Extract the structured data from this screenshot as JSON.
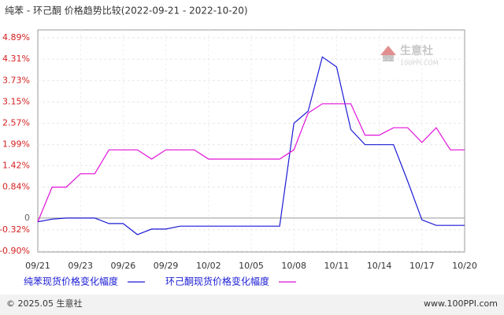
{
  "chart_data": {
    "type": "line",
    "title": "纯苯 - 环己酮 价格趋势比较(2022-09-21 - 2022-10-20)",
    "categories": [
      "09/21",
      null,
      null,
      "09/23",
      null,
      null,
      "09/26",
      null,
      null,
      "09/29",
      null,
      null,
      "10/02",
      null,
      null,
      "10/05",
      null,
      null,
      "10/08",
      null,
      null,
      "10/11",
      null,
      null,
      "10/14",
      null,
      null,
      "10/17",
      null,
      null,
      "10/20"
    ],
    "series": [
      {
        "name": "纯苯现货价格变化幅度",
        "color": "#1a1ad6",
        "values": [
          -0.1,
          -0.03,
          0,
          0,
          0,
          -0.15,
          -0.15,
          -0.45,
          -0.3,
          -0.3,
          -0.22,
          -0.22,
          -0.22,
          -0.22,
          -0.22,
          -0.22,
          -0.22,
          -0.22,
          2.57,
          2.9,
          4.37,
          4.1,
          2.4,
          1.99,
          1.99,
          1.99,
          1.0,
          -0.05,
          -0.2,
          -0.2,
          -0.2
        ]
      },
      {
        "name": "环己酮现货价格变化幅度",
        "color": "#e010d8",
        "values": [
          -0.1,
          0.84,
          0.84,
          1.2,
          1.2,
          1.85,
          1.85,
          1.85,
          1.6,
          1.85,
          1.85,
          1.85,
          1.6,
          1.6,
          1.6,
          1.6,
          1.6,
          1.6,
          1.85,
          2.85,
          3.1,
          3.1,
          3.1,
          2.25,
          2.25,
          2.45,
          2.45,
          2.05,
          2.45,
          1.85,
          1.85
        ]
      }
    ],
    "ylim": [
      -0.9,
      4.89
    ],
    "yticks": [
      {
        "value": -0.9,
        "label": "-0.90%"
      },
      {
        "value": -0.32,
        "label": "-0.32%"
      },
      0,
      {
        "value": 0.84,
        "label": "0.84%"
      },
      {
        "value": 1.42,
        "label": "1.42%"
      },
      {
        "value": 1.99,
        "label": "1.99%"
      },
      {
        "value": 2.57,
        "label": "2.57%"
      },
      {
        "value": 3.15,
        "label": "3.15%"
      },
      {
        "value": 3.73,
        "label": "3.73%"
      },
      {
        "value": 4.31,
        "label": "4.31%"
      },
      {
        "value": 4.89,
        "label": "4.89%"
      }
    ],
    "grid": true
  },
  "watermark": {
    "name": "生意社",
    "site": "100PPI.COM"
  },
  "footer": {
    "copyright": "© 2025.05 生意社",
    "site": "www.100PPI.com"
  }
}
